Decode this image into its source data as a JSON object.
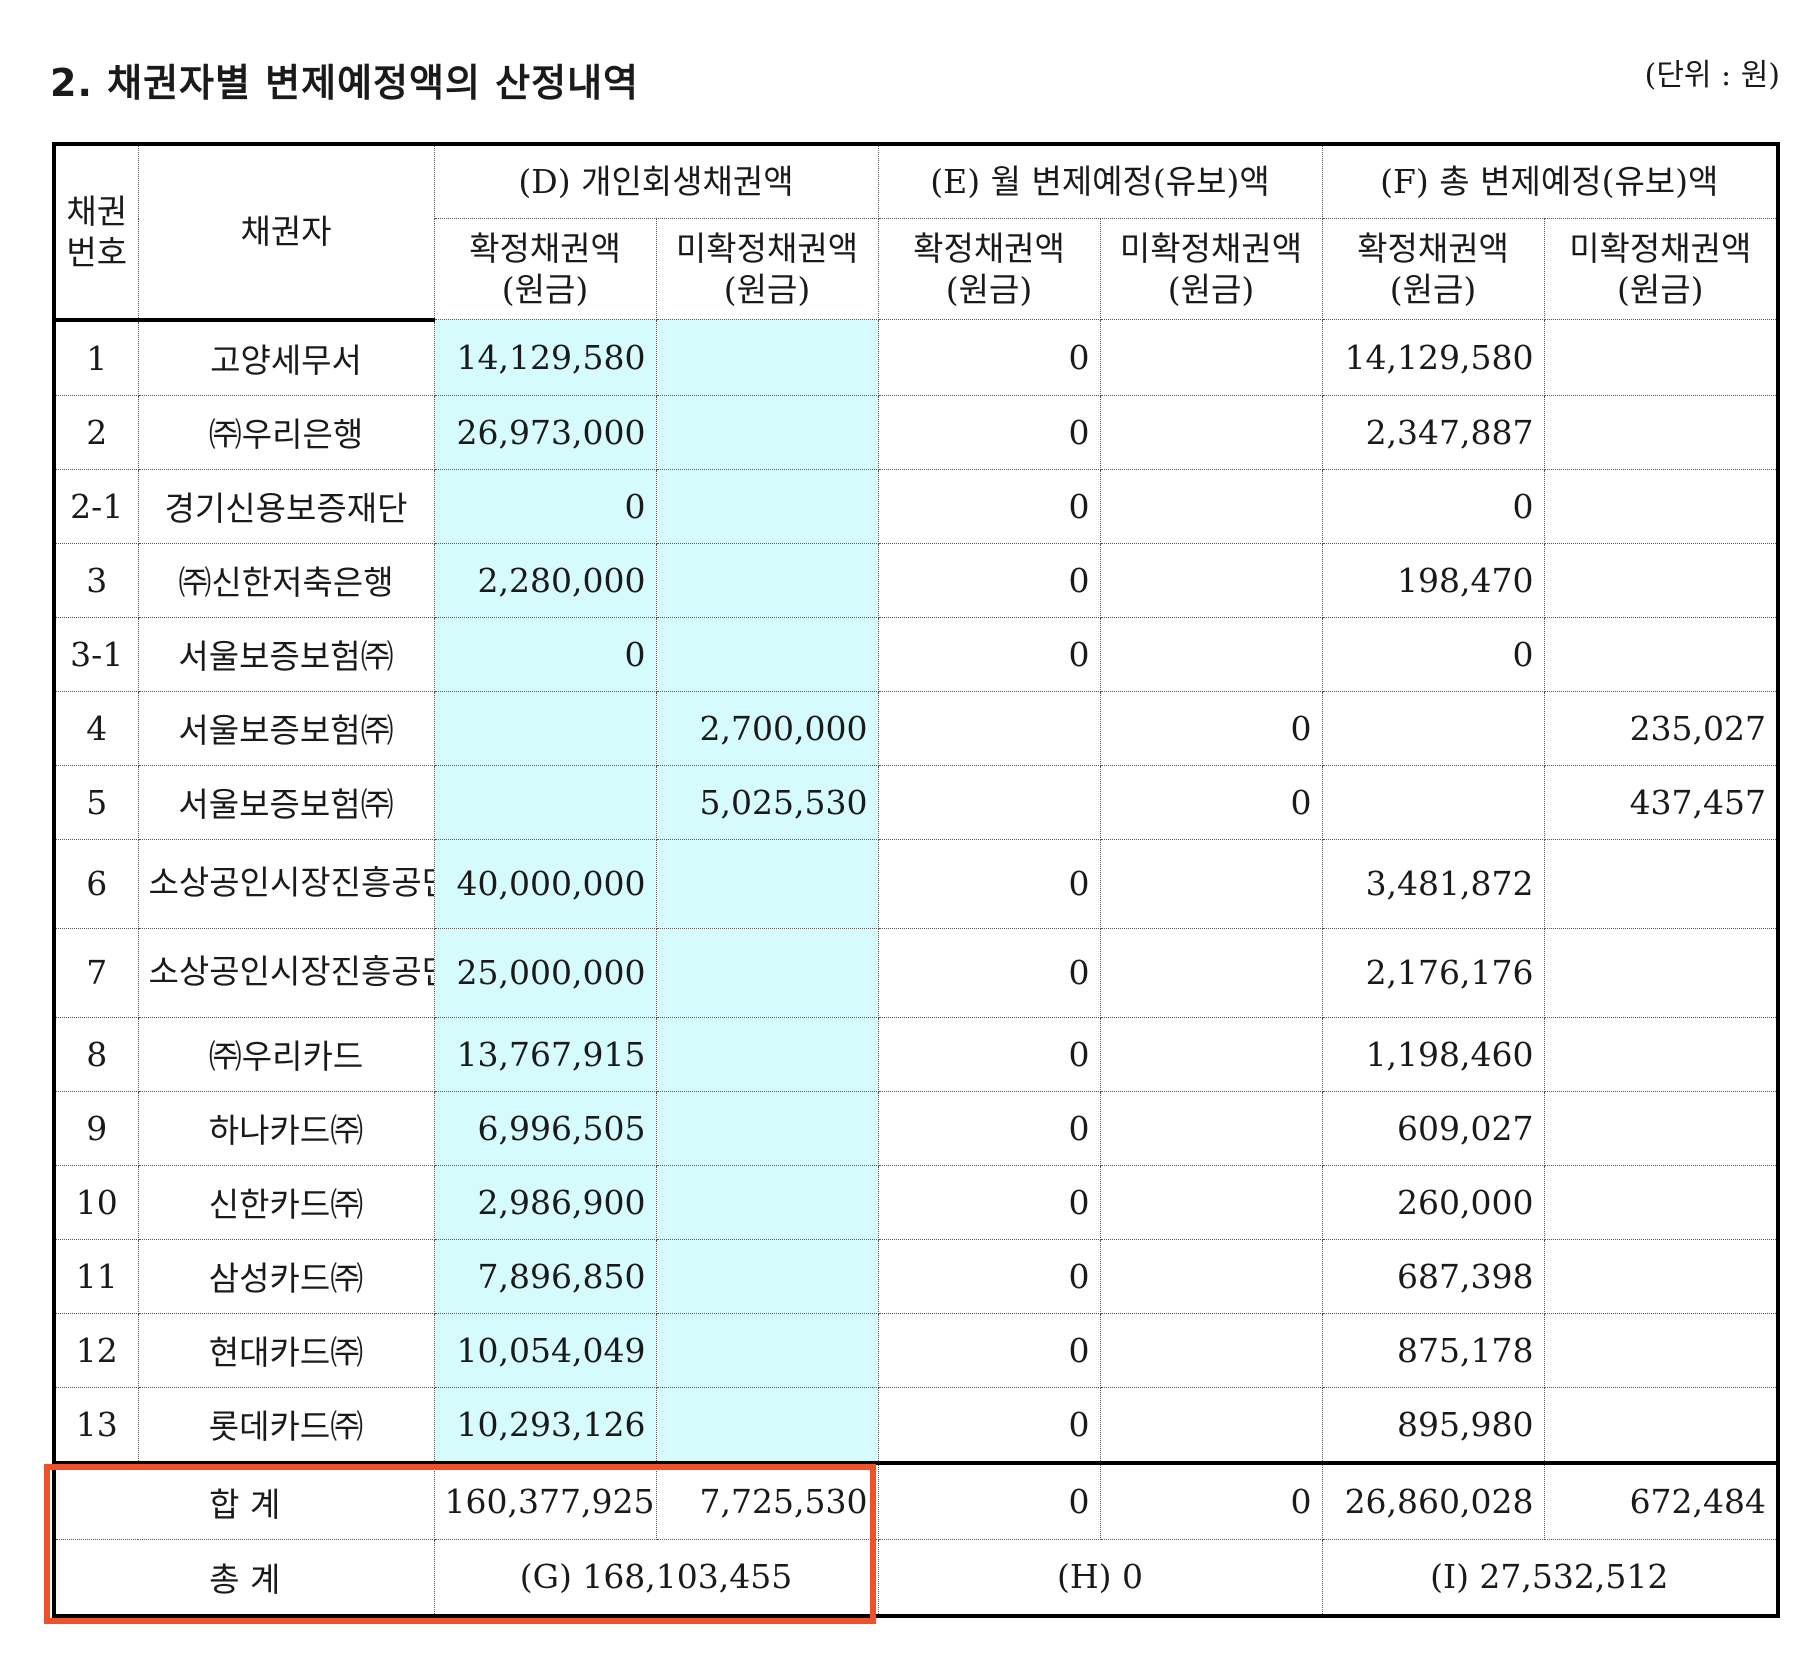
{
  "title": "2. 채권자별 변제예정액의 산정내역",
  "unit_note": "(단위 : 원)",
  "header": {
    "creditor_no": "채권\n번호",
    "creditor": "채권자",
    "group_d": "(D) 개인회생채권액",
    "group_e": "(E) 월 변제예정(유보)액",
    "group_f": "(F) 총 변제예정(유보)액",
    "confirmed": "확정채권액\n(원금)",
    "unconfirmed": "미확정채권액\n(원금)"
  },
  "rows": [
    {
      "no": "1",
      "creditor": "고양세무서",
      "d_conf": "14,129,580",
      "d_unconf": "",
      "e_conf": "0",
      "e_unconf": "",
      "f_conf": "14,129,580",
      "f_unconf": ""
    },
    {
      "no": "2",
      "creditor": "㈜우리은행",
      "d_conf": "26,973,000",
      "d_unconf": "",
      "e_conf": "0",
      "e_unconf": "",
      "f_conf": "2,347,887",
      "f_unconf": ""
    },
    {
      "no": "2-1",
      "creditor": "경기신용보증재단",
      "d_conf": "0",
      "d_unconf": "",
      "e_conf": "0",
      "e_unconf": "",
      "f_conf": "0",
      "f_unconf": ""
    },
    {
      "no": "3",
      "creditor": "㈜신한저축은행",
      "d_conf": "2,280,000",
      "d_unconf": "",
      "e_conf": "0",
      "e_unconf": "",
      "f_conf": "198,470",
      "f_unconf": ""
    },
    {
      "no": "3-1",
      "creditor": "서울보증보험㈜",
      "d_conf": "0",
      "d_unconf": "",
      "e_conf": "0",
      "e_unconf": "",
      "f_conf": "0",
      "f_unconf": ""
    },
    {
      "no": "4",
      "creditor": "서울보증보험㈜",
      "d_conf": "",
      "d_unconf": "2,700,000",
      "e_conf": "",
      "e_unconf": "0",
      "f_conf": "",
      "f_unconf": "235,027"
    },
    {
      "no": "5",
      "creditor": "서울보증보험㈜",
      "d_conf": "",
      "d_unconf": "5,025,530",
      "e_conf": "",
      "e_unconf": "0",
      "f_conf": "",
      "f_unconf": "437,457"
    },
    {
      "no": "6",
      "creditor": "소상공인시장진흥공단",
      "d_conf": "40,000,000",
      "d_unconf": "",
      "e_conf": "0",
      "e_unconf": "",
      "f_conf": "3,481,872",
      "f_unconf": ""
    },
    {
      "no": "7",
      "creditor": "소상공인시장진흥공단",
      "d_conf": "25,000,000",
      "d_unconf": "",
      "e_conf": "0",
      "e_unconf": "",
      "f_conf": "2,176,176",
      "f_unconf": ""
    },
    {
      "no": "8",
      "creditor": "㈜우리카드",
      "d_conf": "13,767,915",
      "d_unconf": "",
      "e_conf": "0",
      "e_unconf": "",
      "f_conf": "1,198,460",
      "f_unconf": ""
    },
    {
      "no": "9",
      "creditor": "하나카드㈜",
      "d_conf": "6,996,505",
      "d_unconf": "",
      "e_conf": "0",
      "e_unconf": "",
      "f_conf": "609,027",
      "f_unconf": ""
    },
    {
      "no": "10",
      "creditor": "신한카드㈜",
      "d_conf": "2,986,900",
      "d_unconf": "",
      "e_conf": "0",
      "e_unconf": "",
      "f_conf": "260,000",
      "f_unconf": ""
    },
    {
      "no": "11",
      "creditor": "삼성카드㈜",
      "d_conf": "7,896,850",
      "d_unconf": "",
      "e_conf": "0",
      "e_unconf": "",
      "f_conf": "687,398",
      "f_unconf": ""
    },
    {
      "no": "12",
      "creditor": "현대카드㈜",
      "d_conf": "10,054,049",
      "d_unconf": "",
      "e_conf": "0",
      "e_unconf": "",
      "f_conf": "875,178",
      "f_unconf": ""
    },
    {
      "no": "13",
      "creditor": "롯데카드㈜",
      "d_conf": "10,293,126",
      "d_unconf": "",
      "e_conf": "0",
      "e_unconf": "",
      "f_conf": "895,980",
      "f_unconf": ""
    }
  ],
  "sum": {
    "label": "합 계",
    "d_conf": "160,377,925",
    "d_unconf": "7,725,530",
    "e_conf": "0",
    "e_unconf": "0",
    "f_conf": "26,860,028",
    "f_unconf": "672,484"
  },
  "total": {
    "label": "총 계",
    "g": "(G) 168,103,455",
    "h": "(H) 0",
    "i": "(I) 27,532,512"
  },
  "colors": {
    "highlight_fill": "#d6fbfc",
    "annotation_box": "#f0502a"
  }
}
